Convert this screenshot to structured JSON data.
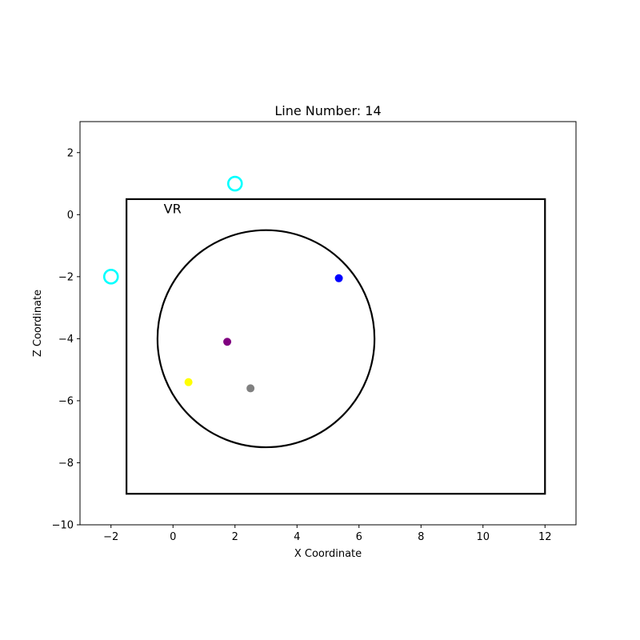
{
  "chart_data": {
    "type": "scatter",
    "title": "Line Number: 14",
    "xlabel": "X Coordinate",
    "ylabel": "Z Coordinate",
    "xlim": [
      -3,
      13
    ],
    "ylim": [
      -10,
      3
    ],
    "xticks": [
      -2,
      0,
      2,
      4,
      6,
      8,
      10,
      12
    ],
    "yticks": [
      -10,
      -8,
      -6,
      -4,
      -2,
      0,
      2
    ],
    "xtick_labels": [
      "−2",
      "0",
      "2",
      "4",
      "6",
      "8",
      "10",
      "12"
    ],
    "ytick_labels": [
      "−10",
      "−8",
      "−6",
      "−4",
      "−2",
      "0",
      "2"
    ],
    "grid": false,
    "rectangle": {
      "x0": -1.5,
      "y0": -9,
      "x1": 12,
      "y1": 0.5,
      "color": "#000000"
    },
    "circle": {
      "cx": 3,
      "cy": -4,
      "r": 3.5,
      "color": "#000000"
    },
    "annotations": [
      {
        "text": "VR",
        "x": -0.3,
        "y": 0.05
      }
    ],
    "points": [
      {
        "x": 5.35,
        "y": -2.05,
        "color": "#0000ff",
        "style": "filled"
      },
      {
        "x": 1.75,
        "y": -4.1,
        "color": "#800080",
        "style": "filled"
      },
      {
        "x": 0.5,
        "y": -5.4,
        "color": "#ffff00",
        "style": "filled"
      },
      {
        "x": 2.5,
        "y": -5.6,
        "color": "#808080",
        "style": "filled"
      },
      {
        "x": 2.0,
        "y": 1.0,
        "color": "#00ffff",
        "style": "hollow"
      },
      {
        "x": -2.0,
        "y": -2.0,
        "color": "#00ffff",
        "style": "hollow"
      }
    ]
  }
}
